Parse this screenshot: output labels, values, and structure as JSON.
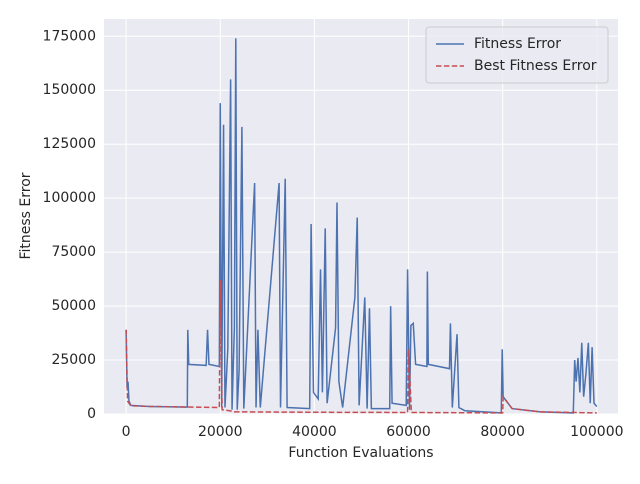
{
  "chart_data": {
    "type": "line",
    "xlabel": "Function Evaluations",
    "ylabel": "Fitness Error",
    "xlim": [
      -4700,
      104500
    ],
    "ylim": [
      0,
      183000
    ],
    "xticks": [
      0,
      20000,
      40000,
      60000,
      80000,
      100000
    ],
    "yticks": [
      0,
      25000,
      50000,
      75000,
      100000,
      125000,
      150000,
      175000
    ],
    "grid": true,
    "legend": "upper right",
    "series": [
      {
        "name": "Fitness Error",
        "color": "#4c72b0",
        "dash": false,
        "x": [
          0,
          200,
          400,
          600,
          1000,
          5000,
          13000,
          13100,
          13300,
          17000,
          17300,
          17600,
          19800,
          20000,
          20300,
          20700,
          21000,
          21600,
          22200,
          22500,
          23000,
          23300,
          23600,
          24000,
          24600,
          25000,
          27300,
          27600,
          28000,
          28500,
          32500,
          32800,
          33800,
          34200,
          39000,
          39300,
          39800,
          40800,
          41300,
          41700,
          42300,
          42700,
          44500,
          44800,
          45200,
          46000,
          48600,
          49100,
          49500,
          50700,
          51200,
          51700,
          52100,
          56000,
          56200,
          56500,
          59500,
          59800,
          60200,
          60500,
          61000,
          61500,
          63900,
          64000,
          64200,
          68700,
          68900,
          69300,
          70300,
          70700,
          72000,
          79700,
          79900,
          80100,
          82000,
          88000,
          95000,
          95300,
          95600,
          96000,
          96400,
          96800,
          97200,
          97700,
          98200,
          98600,
          99000,
          99400,
          100000
        ],
        "values": [
          39000,
          12000,
          15000,
          6000,
          4000,
          3500,
          3200,
          39000,
          23000,
          22500,
          39000,
          23000,
          22000,
          144000,
          3000,
          134000,
          3000,
          30000,
          155000,
          2000,
          40000,
          174000,
          2000,
          20000,
          133000,
          2500,
          107000,
          3000,
          39000,
          3000,
          107000,
          3000,
          109000,
          3000,
          2500,
          88000,
          10000,
          7000,
          67000,
          10000,
          86000,
          5000,
          40000,
          98000,
          15000,
          3000,
          54000,
          91000,
          4000,
          54000,
          2500,
          49000,
          2500,
          2500,
          50000,
          5000,
          4000,
          67000,
          2000,
          41000,
          42000,
          23000,
          22000,
          66000,
          23000,
          21000,
          42000,
          3000,
          37000,
          3000,
          1500,
          500,
          30000,
          8000,
          2500,
          1000,
          500,
          25000,
          15000,
          26000,
          10000,
          33000,
          8000,
          19000,
          33000,
          5000,
          31000,
          5000,
          3500
        ]
      },
      {
        "name": "Best Fitness Error",
        "color": "#c44e52",
        "dash": true,
        "x": [
          0,
          300,
          1000,
          5000,
          19800,
          20000,
          20400,
          22000,
          23000,
          40000,
          59800,
          60000,
          60600,
          80000,
          80100,
          82000,
          88000,
          100000
        ],
        "values": [
          39000,
          6000,
          3800,
          3500,
          3000,
          62000,
          2000,
          1500,
          1000,
          800,
          700,
          30000,
          700,
          500,
          8000,
          2500,
          1000,
          500
        ]
      }
    ]
  }
}
